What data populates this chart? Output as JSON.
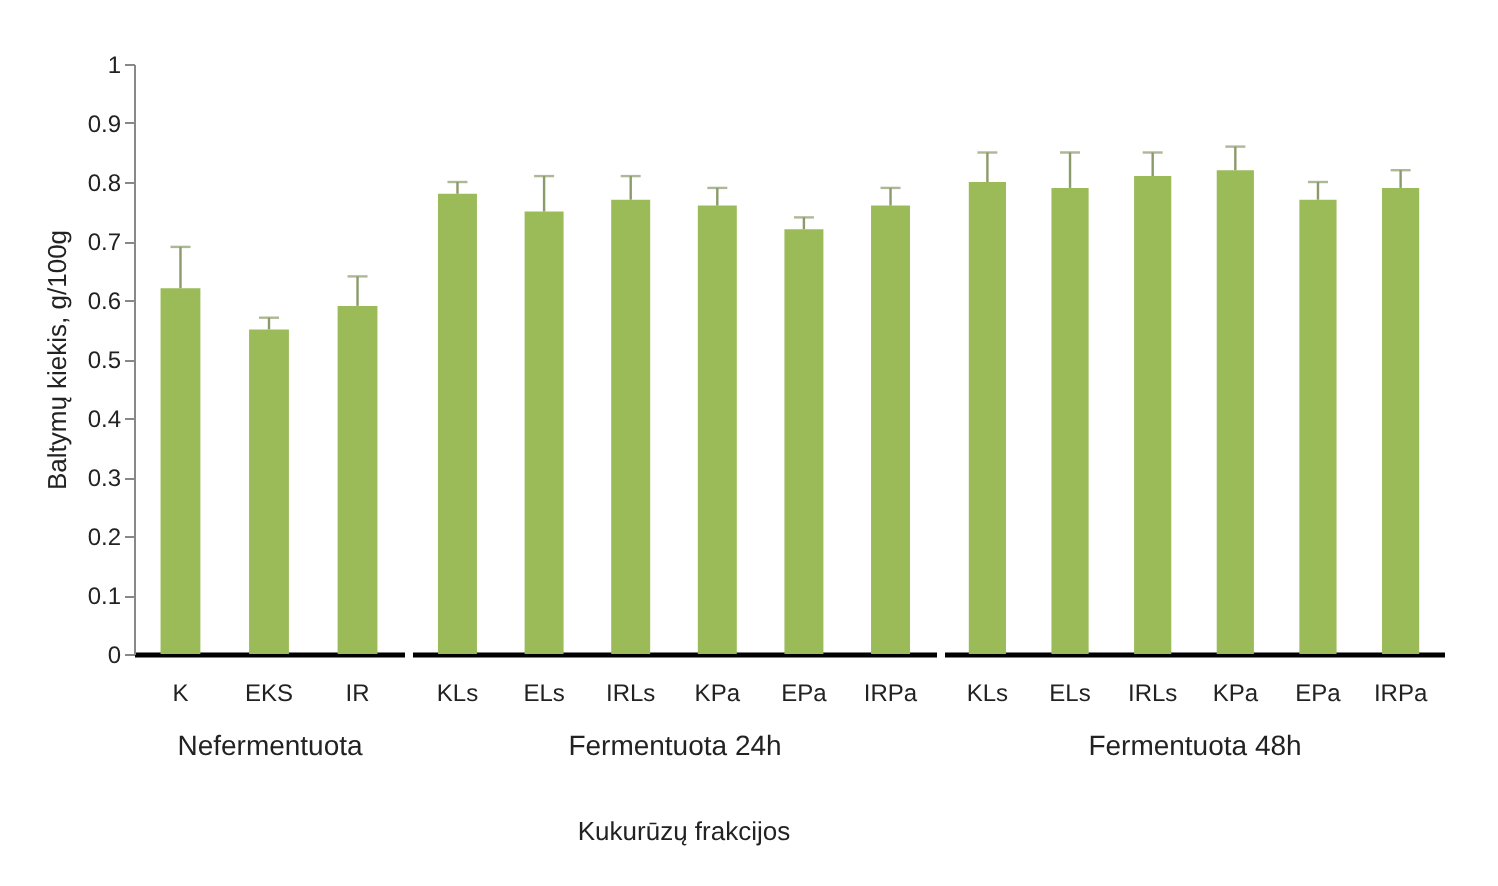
{
  "chart_data": [
    {
      "type": "bar",
      "categories": [
        "K",
        "EKS",
        "IR"
      ],
      "values": [
        0.62,
        0.55,
        0.59
      ],
      "errors": [
        [
          0.62,
          0.69
        ],
        [
          0.55,
          0.57
        ],
        [
          0.59,
          0.64
        ]
      ],
      "color": "#9bbb59",
      "xlabel": "Nefermentuota",
      "ylabel": "Baltymų kiekis, g/100g",
      "ylim": [
        0,
        1
      ],
      "yticks": [
        0,
        0.1,
        0.2,
        0.3,
        0.4,
        0.5,
        0.6,
        0.7,
        0.8,
        0.9,
        1
      ],
      "grid": false
    },
    {
      "type": "bar",
      "categories": [
        "KLs",
        "ELs",
        "IRLs",
        "KPa",
        "EPa",
        "IRPa"
      ],
      "values": [
        0.78,
        0.75,
        0.77,
        0.76,
        0.72,
        0.76
      ],
      "errors": [
        [
          0.78,
          0.8
        ],
        [
          0.75,
          0.81
        ],
        [
          0.77,
          0.81
        ],
        [
          0.76,
          0.79
        ],
        [
          0.72,
          0.74
        ],
        [
          0.76,
          0.79
        ]
      ],
      "color": "#9bbb59",
      "xlabel": "Fermentuota 24h",
      "ylim": [
        0,
        1
      ],
      "tick_labels": "x",
      "grid": false,
      "annotations": [
        "Kukurūzų frakcijos"
      ]
    },
    {
      "type": "bar",
      "categories": [
        "KLs",
        "ELs",
        "IRLs",
        "KPa",
        "EPa",
        "IRPa"
      ],
      "values": [
        0.8,
        0.79,
        0.81,
        0.82,
        0.77,
        0.79
      ],
      "errors": [
        [
          0.8,
          0.85
        ],
        [
          0.79,
          0.85
        ],
        [
          0.81,
          0.85
        ],
        [
          0.82,
          0.86
        ],
        [
          0.77,
          0.8
        ],
        [
          0.79,
          0.82
        ]
      ],
      "color": "#9bbb59",
      "xlabel": "Fermentuota 48h",
      "ylim": [
        0,
        1
      ],
      "tick_labels": "x",
      "grid": false
    }
  ]
}
